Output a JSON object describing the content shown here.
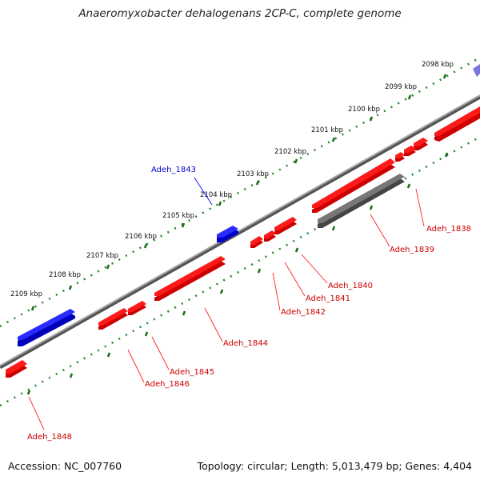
{
  "title": "Anaeromyxobacter dehalogenans 2CP-C, complete genome",
  "footer": {
    "accession": "Accession: NC_007760",
    "topology": "Topology: circular; Length: 5,013,479 bp; Genes: 4,404"
  },
  "colors": {
    "forward_gene": "#0000ff",
    "forward_gene_faded": "#7777dd",
    "reverse_gene": "#ff0000",
    "pseudo_gene": "#666666",
    "backbone": "#888888",
    "ruler": "#228822"
  },
  "ruler_labels": [
    "2098 kbp",
    "2099 kbp",
    "2100 kbp",
    "2101 kbp",
    "2102 kbp",
    "2103 kbp",
    "2104 kbp",
    "2105 kbp",
    "2106 kbp",
    "2107 kbp",
    "2108 kbp",
    "2109 kbp"
  ],
  "gene_labels": {
    "adeh_1838": "Adeh_1838",
    "adeh_1839": "Adeh_1839",
    "adeh_1840": "Adeh_1840",
    "adeh_1841": "Adeh_1841",
    "adeh_1842": "Adeh_1842",
    "adeh_1843": "Adeh_1843",
    "adeh_1844": "Adeh_1844",
    "adeh_1845": "Adeh_1845",
    "adeh_1846": "Adeh_1846",
    "adeh_1848": "Adeh_1848"
  }
}
